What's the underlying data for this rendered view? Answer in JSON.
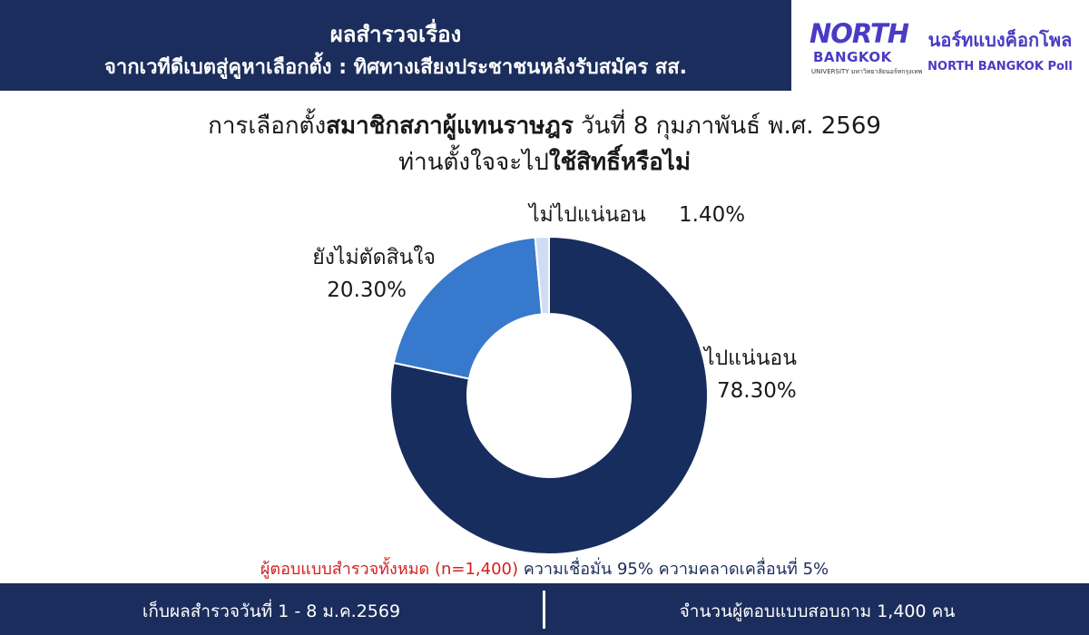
{
  "header": {
    "line1": "ผลสำรวจเรื่อง",
    "line2": "จากเวทีดีเบตสู่คูหาเลือกตั้ง : ทิศทางเสียงประชาชนหลังรับสมัคร สส."
  },
  "logo": {
    "mark_top": "NORTH",
    "mark_bottom": "BANGKOK",
    "mark_sub": "UNIVERSITY มหาวิทยาลัยนอร์ทกรุงเทพ",
    "name_th": "นอร์ทแบงค็อกโพล",
    "name_en": "NORTH BANGKOK Poll"
  },
  "title": {
    "line1_a": "การเลือกตั้ง",
    "line1_b": "สมาชิกสภาผู้แทนราษฎร",
    "line1_c": " วันที่ 8 กุมภาพันธ์ พ.ศ. 2569",
    "line2_a": "ท่านตั้งใจจะไป",
    "line2_b": "ใช้สิทธิ์หรือไม่"
  },
  "chart_data": {
    "type": "pie",
    "donut": true,
    "categories": [
      "ไปแน่นอน",
      "ยังไม่ตัดสินใจ",
      "ไม่ไปแน่นอน"
    ],
    "values": [
      78.3,
      20.3,
      1.4
    ],
    "value_labels": [
      "78.30%",
      "20.30%",
      "1.40%"
    ],
    "colors": [
      "#172d5e",
      "#3779cd",
      "#cfdcf5"
    ]
  },
  "note": {
    "red": "ผู้ตอบแบบสำรวจทั้งหมด (n=1,400)",
    "dark": " ความเชื่อมั่น 95% ความคลาดเคลื่อนที่ 5%"
  },
  "footer": {
    "left": "เก็บผลสำรวจวันที่ 1 - 8 ม.ค.2569",
    "right": "จำนวนผู้ตอบแบบสอบถาม 1,400 คน"
  }
}
